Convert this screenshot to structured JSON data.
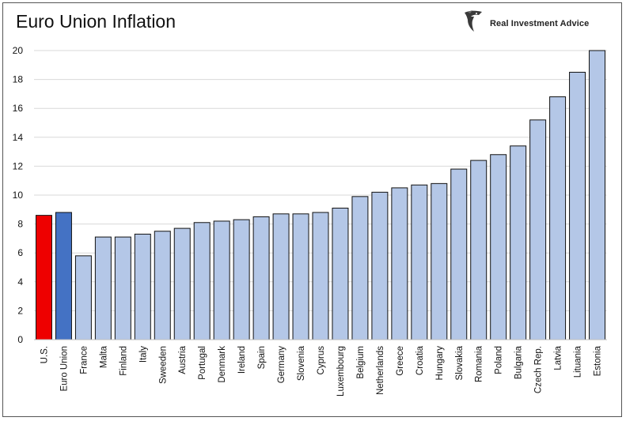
{
  "header": {
    "title": "Euro Union Inflation",
    "brand": "Real Investment Advice"
  },
  "chart_data": {
    "type": "bar",
    "title": "Euro Union Inflation",
    "xlabel": "",
    "ylabel": "",
    "ylim": [
      0,
      20
    ],
    "yticks": [
      0,
      2,
      4,
      6,
      8,
      10,
      12,
      14,
      16,
      18,
      20
    ],
    "grid": true,
    "categories": [
      "U.S.",
      "Euro Union",
      "France",
      "Malta",
      "Finland",
      "Italy",
      "Sweeden",
      "Austria",
      "Portugal",
      "Denmark",
      "Ireland",
      "Spain",
      "Germany",
      "Slovenia",
      "Cyprus",
      "Luxembourg",
      "Belgium",
      "Netherlands",
      "Greece",
      "Croatia",
      "Hungary",
      "Slovakia",
      "Romania",
      "Poland",
      "Bulgaria",
      "Czech Rep.",
      "Latvia",
      "Lituania",
      "Estonia"
    ],
    "values": [
      8.6,
      8.8,
      5.8,
      7.1,
      7.1,
      7.3,
      7.5,
      7.7,
      8.1,
      8.2,
      8.3,
      8.5,
      8.7,
      8.7,
      8.8,
      9.1,
      9.9,
      10.2,
      10.5,
      10.7,
      10.8,
      11.8,
      12.4,
      12.8,
      13.4,
      15.2,
      16.8,
      18.5,
      20.0
    ],
    "colors": {
      "us": "#ee0000",
      "euro_union": "#4472c4",
      "countries": "#b4c7e7",
      "bar_border": "#111111",
      "grid": "#d9d9d9"
    }
  }
}
